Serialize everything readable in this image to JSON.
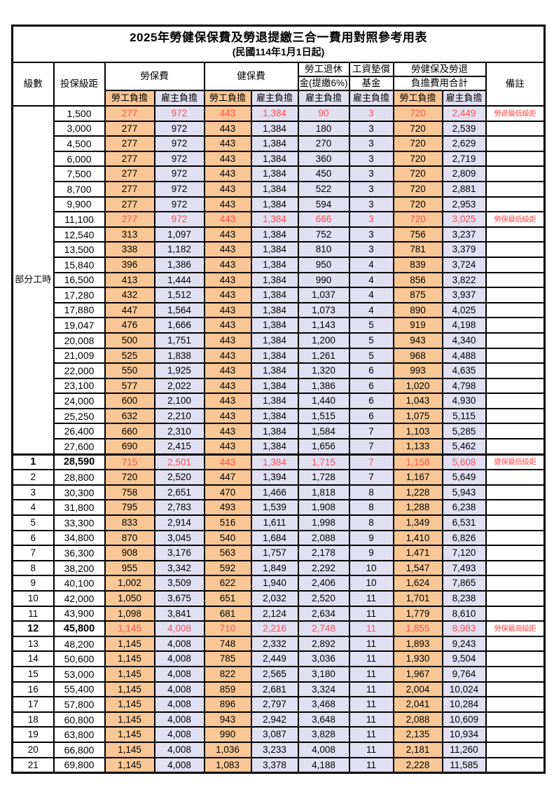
{
  "title": "2025年勞健保保費及勞退提繳三合一費用對照參考用表",
  "subtitle": "(民國114年1月1日起)",
  "header": {
    "level": "級數",
    "bracket": "投保級距",
    "labor_insurance": "勞保費",
    "health_insurance": "健保費",
    "pension_line1": "勞工退休",
    "pension_line2": "金(提繳6%)",
    "wage_fund_line1": "工資墊償",
    "wage_fund_line2": "基金",
    "total_line1": "勞健保及勞退",
    "total_line2": "負擔費用合計",
    "remark": "備註",
    "employee": "勞工負擔",
    "employer": "雇主負擔"
  },
  "part_time_label": "部分工時",
  "colors": {
    "employee_bg": "#F8C795",
    "employer_bg": "#E1DFF2",
    "highlight_text": "#FF5050",
    "border": "#000000"
  },
  "rows": [
    {
      "level": "",
      "bracket": "1,500",
      "values": [
        "277",
        "972",
        "443",
        "1,384",
        "90",
        "3",
        "720",
        "2,449"
      ],
      "remark": "勞退最低級距",
      "highlight": true,
      "bold": false
    },
    {
      "level": "",
      "bracket": "3,000",
      "values": [
        "277",
        "972",
        "443",
        "1,384",
        "180",
        "3",
        "720",
        "2,539"
      ],
      "remark": "",
      "highlight": false,
      "bold": false
    },
    {
      "level": "",
      "bracket": "4,500",
      "values": [
        "277",
        "972",
        "443",
        "1,384",
        "270",
        "3",
        "720",
        "2,629"
      ],
      "remark": "",
      "highlight": false,
      "bold": false
    },
    {
      "level": "",
      "bracket": "6,000",
      "values": [
        "277",
        "972",
        "443",
        "1,384",
        "360",
        "3",
        "720",
        "2,719"
      ],
      "remark": "",
      "highlight": false,
      "bold": false
    },
    {
      "level": "",
      "bracket": "7,500",
      "values": [
        "277",
        "972",
        "443",
        "1,384",
        "450",
        "3",
        "720",
        "2,809"
      ],
      "remark": "",
      "highlight": false,
      "bold": false
    },
    {
      "level": "",
      "bracket": "8,700",
      "values": [
        "277",
        "972",
        "443",
        "1,384",
        "522",
        "3",
        "720",
        "2,881"
      ],
      "remark": "",
      "highlight": false,
      "bold": false
    },
    {
      "level": "",
      "bracket": "9,900",
      "values": [
        "277",
        "972",
        "443",
        "1,384",
        "594",
        "3",
        "720",
        "2,953"
      ],
      "remark": "",
      "highlight": false,
      "bold": false
    },
    {
      "level": "",
      "bracket": "11,100",
      "values": [
        "277",
        "972",
        "443",
        "1,384",
        "666",
        "3",
        "720",
        "3,025"
      ],
      "remark": "勞保最低級距",
      "highlight": true,
      "bold": false
    },
    {
      "level": "",
      "bracket": "12,540",
      "values": [
        "313",
        "1,097",
        "443",
        "1,384",
        "752",
        "3",
        "756",
        "3,237"
      ],
      "remark": "",
      "highlight": false,
      "bold": false
    },
    {
      "level": "",
      "bracket": "13,500",
      "values": [
        "338",
        "1,182",
        "443",
        "1,384",
        "810",
        "3",
        "781",
        "3,379"
      ],
      "remark": "",
      "highlight": false,
      "bold": false
    },
    {
      "level": "",
      "bracket": "15,840",
      "values": [
        "396",
        "1,386",
        "443",
        "1,384",
        "950",
        "4",
        "839",
        "3,724"
      ],
      "remark": "",
      "highlight": false,
      "bold": false
    },
    {
      "level": "",
      "bracket": "16,500",
      "values": [
        "413",
        "1,444",
        "443",
        "1,384",
        "990",
        "4",
        "856",
        "3,822"
      ],
      "remark": "",
      "highlight": false,
      "bold": false
    },
    {
      "level": "",
      "bracket": "17,280",
      "values": [
        "432",
        "1,512",
        "443",
        "1,384",
        "1,037",
        "4",
        "875",
        "3,937"
      ],
      "remark": "",
      "highlight": false,
      "bold": false
    },
    {
      "level": "",
      "bracket": "17,880",
      "values": [
        "447",
        "1,564",
        "443",
        "1,384",
        "1,073",
        "4",
        "890",
        "4,025"
      ],
      "remark": "",
      "highlight": false,
      "bold": false
    },
    {
      "level": "",
      "bracket": "19,047",
      "values": [
        "476",
        "1,666",
        "443",
        "1,384",
        "1,143",
        "5",
        "919",
        "4,198"
      ],
      "remark": "",
      "highlight": false,
      "bold": false
    },
    {
      "level": "",
      "bracket": "20,008",
      "values": [
        "500",
        "1,751",
        "443",
        "1,384",
        "1,200",
        "5",
        "943",
        "4,340"
      ],
      "remark": "",
      "highlight": false,
      "bold": false
    },
    {
      "level": "",
      "bracket": "21,009",
      "values": [
        "525",
        "1,838",
        "443",
        "1,384",
        "1,261",
        "5",
        "968",
        "4,488"
      ],
      "remark": "",
      "highlight": false,
      "bold": false
    },
    {
      "level": "",
      "bracket": "22,000",
      "values": [
        "550",
        "1,925",
        "443",
        "1,384",
        "1,320",
        "6",
        "993",
        "4,635"
      ],
      "remark": "",
      "highlight": false,
      "bold": false
    },
    {
      "level": "",
      "bracket": "23,100",
      "values": [
        "577",
        "2,022",
        "443",
        "1,384",
        "1,386",
        "6",
        "1,020",
        "4,798"
      ],
      "remark": "",
      "highlight": false,
      "bold": false
    },
    {
      "level": "",
      "bracket": "24,000",
      "values": [
        "600",
        "2,100",
        "443",
        "1,384",
        "1,440",
        "6",
        "1,043",
        "4,930"
      ],
      "remark": "",
      "highlight": false,
      "bold": false
    },
    {
      "level": "",
      "bracket": "25,250",
      "values": [
        "632",
        "2,210",
        "443",
        "1,384",
        "1,515",
        "6",
        "1,075",
        "5,115"
      ],
      "remark": "",
      "highlight": false,
      "bold": false
    },
    {
      "level": "",
      "bracket": "26,400",
      "values": [
        "660",
        "2,310",
        "443",
        "1,384",
        "1,584",
        "7",
        "1,103",
        "5,285"
      ],
      "remark": "",
      "highlight": false,
      "bold": false
    },
    {
      "level": "",
      "bracket": "27,600",
      "values": [
        "690",
        "2,415",
        "443",
        "1,384",
        "1,656",
        "7",
        "1,133",
        "5,462"
      ],
      "remark": "",
      "highlight": false,
      "bold": false
    },
    {
      "level": "1",
      "bracket": "28,590",
      "values": [
        "715",
        "2,501",
        "443",
        "1,384",
        "1,715",
        "7",
        "1,158",
        "5,608"
      ],
      "remark": "健保最低級距",
      "highlight": true,
      "bold": true
    },
    {
      "level": "2",
      "bracket": "28,800",
      "values": [
        "720",
        "2,520",
        "447",
        "1,394",
        "1,728",
        "7",
        "1,167",
        "5,649"
      ],
      "remark": "",
      "highlight": false,
      "bold": false
    },
    {
      "level": "3",
      "bracket": "30,300",
      "values": [
        "758",
        "2,651",
        "470",
        "1,466",
        "1,818",
        "8",
        "1,228",
        "5,943"
      ],
      "remark": "",
      "highlight": false,
      "bold": false
    },
    {
      "level": "4",
      "bracket": "31,800",
      "values": [
        "795",
        "2,783",
        "493",
        "1,539",
        "1,908",
        "8",
        "1,288",
        "6,238"
      ],
      "remark": "",
      "highlight": false,
      "bold": false
    },
    {
      "level": "5",
      "bracket": "33,300",
      "values": [
        "833",
        "2,914",
        "516",
        "1,611",
        "1,998",
        "8",
        "1,349",
        "6,531"
      ],
      "remark": "",
      "highlight": false,
      "bold": false
    },
    {
      "level": "6",
      "bracket": "34,800",
      "values": [
        "870",
        "3,045",
        "540",
        "1,684",
        "2,088",
        "9",
        "1,410",
        "6,826"
      ],
      "remark": "",
      "highlight": false,
      "bold": false
    },
    {
      "level": "7",
      "bracket": "36,300",
      "values": [
        "908",
        "3,176",
        "563",
        "1,757",
        "2,178",
        "9",
        "1,471",
        "7,120"
      ],
      "remark": "",
      "highlight": false,
      "bold": false
    },
    {
      "level": "8",
      "bracket": "38,200",
      "values": [
        "955",
        "3,342",
        "592",
        "1,849",
        "2,292",
        "10",
        "1,547",
        "7,493"
      ],
      "remark": "",
      "highlight": false,
      "bold": false
    },
    {
      "level": "9",
      "bracket": "40,100",
      "values": [
        "1,002",
        "3,509",
        "622",
        "1,940",
        "2,406",
        "10",
        "1,624",
        "7,865"
      ],
      "remark": "",
      "highlight": false,
      "bold": false
    },
    {
      "level": "10",
      "bracket": "42,000",
      "values": [
        "1,050",
        "3,675",
        "651",
        "2,032",
        "2,520",
        "11",
        "1,701",
        "8,238"
      ],
      "remark": "",
      "highlight": false,
      "bold": false
    },
    {
      "level": "11",
      "bracket": "43,900",
      "values": [
        "1,098",
        "3,841",
        "681",
        "2,124",
        "2,634",
        "11",
        "1,779",
        "8,610"
      ],
      "remark": "",
      "highlight": false,
      "bold": false
    },
    {
      "level": "12",
      "bracket": "45,800",
      "values": [
        "1,145",
        "4,008",
        "710",
        "2,216",
        "2,748",
        "11",
        "1,855",
        "8,983"
      ],
      "remark": "勞保最高級距",
      "highlight": true,
      "bold": true
    },
    {
      "level": "13",
      "bracket": "48,200",
      "values": [
        "1,145",
        "4,008",
        "748",
        "2,332",
        "2,892",
        "11",
        "1,893",
        "9,243"
      ],
      "remark": "",
      "highlight": false,
      "bold": false
    },
    {
      "level": "14",
      "bracket": "50,600",
      "values": [
        "1,145",
        "4,008",
        "785",
        "2,449",
        "3,036",
        "11",
        "1,930",
        "9,504"
      ],
      "remark": "",
      "highlight": false,
      "bold": false
    },
    {
      "level": "15",
      "bracket": "53,000",
      "values": [
        "1,145",
        "4,008",
        "822",
        "2,565",
        "3,180",
        "11",
        "1,967",
        "9,764"
      ],
      "remark": "",
      "highlight": false,
      "bold": false
    },
    {
      "level": "16",
      "bracket": "55,400",
      "values": [
        "1,145",
        "4,008",
        "859",
        "2,681",
        "3,324",
        "11",
        "2,004",
        "10,024"
      ],
      "remark": "",
      "highlight": false,
      "bold": false
    },
    {
      "level": "17",
      "bracket": "57,800",
      "values": [
        "1,145",
        "4,008",
        "896",
        "2,797",
        "3,468",
        "11",
        "2,041",
        "10,284"
      ],
      "remark": "",
      "highlight": false,
      "bold": false
    },
    {
      "level": "18",
      "bracket": "60,800",
      "values": [
        "1,145",
        "4,008",
        "943",
        "2,942",
        "3,648",
        "11",
        "2,088",
        "10,609"
      ],
      "remark": "",
      "highlight": false,
      "bold": false
    },
    {
      "level": "19",
      "bracket": "63,800",
      "values": [
        "1,145",
        "4,008",
        "990",
        "3,087",
        "3,828",
        "11",
        "2,135",
        "10,934"
      ],
      "remark": "",
      "highlight": false,
      "bold": false
    },
    {
      "level": "20",
      "bracket": "66,800",
      "values": [
        "1,145",
        "4,008",
        "1,036",
        "3,233",
        "4,008",
        "11",
        "2,181",
        "11,260"
      ],
      "remark": "",
      "highlight": false,
      "bold": false
    },
    {
      "level": "21",
      "bracket": "69,800",
      "values": [
        "1,145",
        "4,008",
        "1,083",
        "3,378",
        "4,188",
        "11",
        "2,228",
        "11,585"
      ],
      "remark": "",
      "highlight": false,
      "bold": false
    }
  ],
  "part_time_row_count": 23
}
